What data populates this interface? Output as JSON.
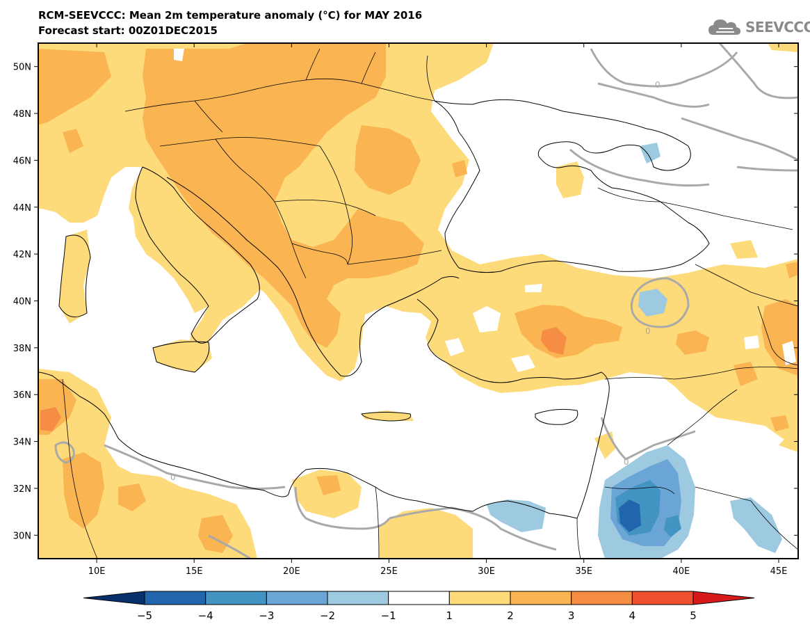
{
  "title": "RCM-SEEVCCC: Mean 2m temperature anomaly (°C) for MAY 2016",
  "subtitle": "Forecast start: 00Z01DEC2015",
  "logo_text": "SEEVCCC",
  "chart_data": {
    "type": "heatmap",
    "variable": "Mean 2m temperature anomaly",
    "unit": "°C",
    "lon_range": [
      7,
      46
    ],
    "lat_range": [
      29,
      51
    ],
    "lon_ticks": [
      "10E",
      "15E",
      "20E",
      "25E",
      "30E",
      "35E",
      "40E",
      "45E"
    ],
    "lat_ticks": [
      "50N",
      "48N",
      "46N",
      "44N",
      "42N",
      "40N",
      "38N",
      "36N",
      "34N",
      "32N",
      "30N"
    ],
    "contour_label": "0",
    "colorbar": {
      "labels": [
        "−5",
        "−4",
        "−3",
        "−2",
        "−1",
        "1",
        "2",
        "3",
        "4",
        "5"
      ],
      "colors": [
        "#08306b",
        "#2166ac",
        "#4393c3",
        "#6ba5d6",
        "#9ecae1",
        "#ffffff",
        "#fddb7a",
        "#fbb452",
        "#f68d45",
        "#f05030",
        "#d7191c"
      ]
    }
  }
}
